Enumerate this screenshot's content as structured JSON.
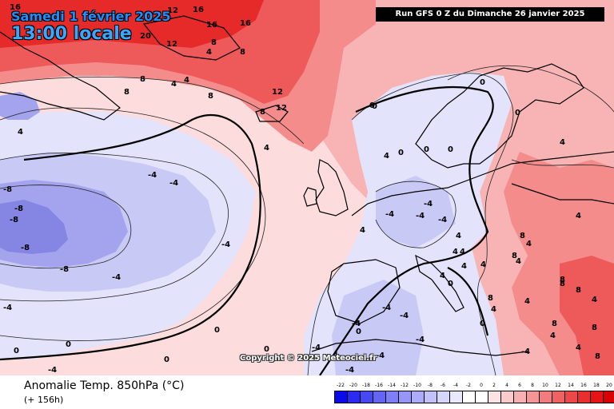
{
  "header": {
    "valid_date": "Samedi 1 février 2025",
    "valid_time": "13:00 locale",
    "run_info": "Run GFS 0 Z du Dimanche 26 janvier 2025"
  },
  "copyright": "Copyright © 2025 Meteociel.fr",
  "footer": {
    "parameter": "Anomalie Temp. 850hPa (°C)",
    "lead_time": "(+ 156h)"
  },
  "legend": {
    "ticks": [
      "-22",
      "-20",
      "-18",
      "-16",
      "-14",
      "-12",
      "-10",
      "-8",
      "-6",
      "-4",
      "-2",
      "0",
      "2",
      "4",
      "6",
      "8",
      "10",
      "12",
      "14",
      "16",
      "18",
      "20"
    ],
    "colors": [
      "#0b0bea",
      "#2a2af0",
      "#4848f3",
      "#6464f5",
      "#7e7ef7",
      "#9696f8",
      "#acacfa",
      "#c2c2fb",
      "#d6d6fc",
      "#e8e8fe",
      "#ffffff",
      "#ffffff",
      "#fde4e4",
      "#fbcaca",
      "#f8b0b0",
      "#f59696",
      "#f27c7c",
      "#ef6262",
      "#ec4848",
      "#e92e2e",
      "#e61414",
      "#d80000"
    ]
  },
  "map": {
    "colors": {
      "background": "#fcdcdc",
      "warm_light": "#f8b4b4",
      "warm_mid": "#f48c8c",
      "warm_strong": "#ee5a5a",
      "warm_max": "#e62a2a",
      "neutral": "#f4f0f8",
      "cold_light": "#e3e3fb",
      "cold_mid": "#c9c9f6",
      "cold_strong": "#a4a4ee",
      "cold_max": "#8585e4",
      "coast": "#000000"
    },
    "isoline_labels": [
      "16",
      "12",
      "16",
      "16",
      "16",
      "20",
      "16",
      "12",
      "8",
      "4",
      "12",
      "8",
      "4",
      "8",
      "4",
      "8",
      "12",
      "8",
      "8",
      "4",
      "4",
      "0",
      "-4",
      "-4",
      "-4",
      "-8",
      "-8",
      "-8",
      "-8",
      "-8",
      "-4",
      "-4",
      "-4",
      "-4",
      "0",
      "0",
      "0",
      "0",
      "0",
      "0",
      "0",
      "0",
      "0",
      "0",
      "0",
      "4",
      "4",
      "4",
      "4",
      "4",
      "4",
      "4",
      "4",
      "8",
      "8",
      "8",
      "8",
      "8",
      "8",
      "-4",
      "-4",
      "-4",
      "-4",
      "-4",
      "-4",
      "-4",
      "-4",
      "-4",
      "0",
      "0",
      "0",
      "4",
      "4",
      "4",
      "4",
      "-4",
      "-4",
      "4",
      "4",
      "8",
      "8",
      "4",
      "8",
      "4",
      "4",
      "4"
    ]
  }
}
